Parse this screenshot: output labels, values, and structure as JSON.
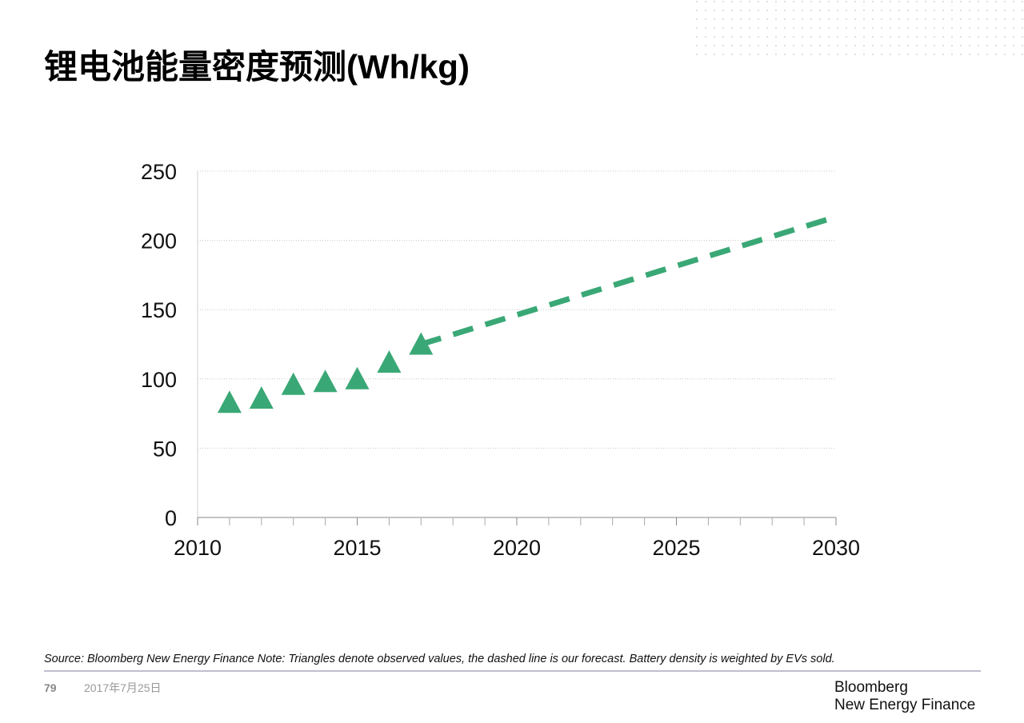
{
  "chart_data": {
    "type": "scatter",
    "title": "锂电池能量密度预测(Wh/kg)",
    "source": "Source: Bloomberg New Energy Finance Note: Triangles denote observed values, the dashed line is our forecast. Battery density is weighted by EVs sold.",
    "series": [
      {
        "style": "triangle",
        "color": "#3aa876",
        "x": [
          2011,
          2012,
          2013,
          2014,
          2015,
          2016,
          2017
        ],
        "values": [
          83,
          86,
          96,
          98,
          100,
          112,
          125
        ]
      },
      {
        "style": "dashed",
        "color": "#3aa876",
        "x": [
          2017,
          2030
        ],
        "values": [
          125,
          217
        ]
      }
    ],
    "xlim": [
      2010,
      2030
    ],
    "xticks": [
      2010,
      2015,
      2020,
      2025,
      2030
    ],
    "xminorticks": [
      2011,
      2012,
      2013,
      2014,
      2016,
      2017,
      2018,
      2019,
      2021,
      2022,
      2023,
      2024,
      2026,
      2027,
      2028,
      2029
    ],
    "ylim": [
      0,
      250
    ],
    "yticks": [
      0,
      50,
      100,
      150,
      200,
      250
    ],
    "grid": true
  },
  "footer": {
    "page": "79",
    "date": "2017年7月25日",
    "brand": [
      "Bloomberg",
      "New Energy Finance"
    ]
  }
}
